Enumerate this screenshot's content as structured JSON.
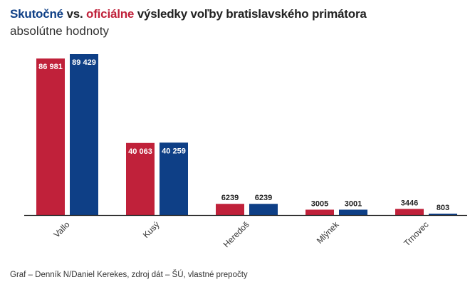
{
  "title": {
    "part1": "Skutočné",
    "part2": " vs. ",
    "part3": "oficiálne",
    "part4": " výsledky voľby bratislavského primátora"
  },
  "subtitle": "absolútne hodnoty",
  "footer": "Graf – Denník N/Daniel Kerekes, zdroj dát – ŠÚ, vlastné prepočty",
  "colors": {
    "actual": "#c0213a",
    "official": "#0e3f86",
    "axis": "#222222"
  },
  "chart_data": {
    "type": "bar",
    "categories": [
      "Vallo",
      "Kusý",
      "Heredoš",
      "Mlýnek",
      "Trnovec"
    ],
    "series": [
      {
        "name": "Skutočné",
        "values": [
          86981,
          40063,
          6239,
          3005,
          3446
        ],
        "labels": [
          "86 981",
          "40 063",
          "6239",
          "3005",
          "3446"
        ]
      },
      {
        "name": "oficiálne",
        "values": [
          89429,
          40259,
          6239,
          3001,
          803
        ],
        "labels": [
          "89 429",
          "40 259",
          "6239",
          "3001",
          "803"
        ]
      }
    ],
    "ylim": [
      0,
      89429
    ],
    "grid": false,
    "legend": "in title"
  }
}
